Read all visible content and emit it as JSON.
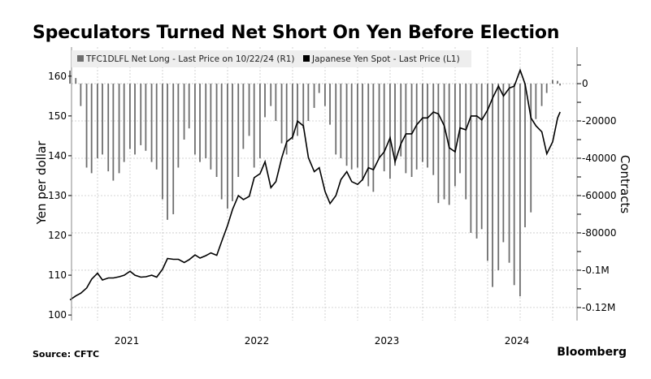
{
  "title": "Speculators Turned Net Short On Yen Before Election",
  "source": "Source: CFTC",
  "brand": "Bloomberg",
  "colors": {
    "bars": "#6e6e6e",
    "line": "#000000",
    "legend_bg": "#eeeeee",
    "grid": "#c8c8c8"
  },
  "chart_data": {
    "type": "bar+line",
    "legend_placement": "top",
    "grid": true,
    "x_ticks": [
      "2021",
      "2022",
      "2023",
      "2024"
    ],
    "left_axis": {
      "label": "Yen per dollar",
      "ticks": [
        100,
        110,
        120,
        130,
        140,
        150,
        160
      ],
      "range": [
        98.6,
        167.3
      ]
    },
    "right_axis": {
      "label": "Contracts",
      "ticks": [
        0,
        -20000,
        -40000,
        -60000,
        -80000,
        -100000,
        -120000
      ],
      "tick_labels": [
        "0",
        "-20000",
        "-40000",
        "-60000",
        "-80000",
        "-0.1M",
        "-0.12M"
      ],
      "range": [
        -127000,
        19600
      ]
    },
    "x": [
      "2021-01-15",
      "2021-02-01",
      "2021-02-15",
      "2021-03-01",
      "2021-03-15",
      "2021-04-01",
      "2021-04-15",
      "2021-05-01",
      "2021-05-15",
      "2021-06-01",
      "2021-06-15",
      "2021-07-01",
      "2021-07-15",
      "2021-08-01",
      "2021-08-15",
      "2021-09-01",
      "2021-09-15",
      "2021-10-01",
      "2021-10-15",
      "2021-11-01",
      "2021-11-15",
      "2021-12-01",
      "2021-12-15",
      "2022-01-01",
      "2022-01-15",
      "2022-02-01",
      "2022-02-15",
      "2022-03-01",
      "2022-03-15",
      "2022-04-01",
      "2022-04-15",
      "2022-05-01",
      "2022-05-15",
      "2022-06-01",
      "2022-06-15",
      "2022-07-01",
      "2022-07-15",
      "2022-08-01",
      "2022-08-15",
      "2022-09-01",
      "2022-09-15",
      "2022-10-01",
      "2022-10-15",
      "2022-11-01",
      "2022-11-15",
      "2022-12-01",
      "2022-12-15",
      "2023-01-01",
      "2023-01-15",
      "2023-02-01",
      "2023-02-15",
      "2023-03-01",
      "2023-03-15",
      "2023-04-01",
      "2023-04-15",
      "2023-05-01",
      "2023-05-15",
      "2023-06-01",
      "2023-06-15",
      "2023-07-01",
      "2023-07-15",
      "2023-08-01",
      "2023-08-15",
      "2023-09-01",
      "2023-09-15",
      "2023-10-01",
      "2023-10-15",
      "2023-11-01",
      "2023-11-15",
      "2023-12-01",
      "2023-12-15",
      "2024-01-01",
      "2024-01-15",
      "2024-02-01",
      "2024-02-15",
      "2024-03-01",
      "2024-03-15",
      "2024-04-01",
      "2024-04-15",
      "2024-05-01",
      "2024-05-15",
      "2024-06-01",
      "2024-06-15",
      "2024-07-01",
      "2024-07-15",
      "2024-08-01",
      "2024-08-15",
      "2024-09-01",
      "2024-09-15",
      "2024-10-01",
      "2024-10-15",
      "2024-10-22"
    ],
    "series": [
      {
        "name": "TFC1DLFL Net Long - Last Price on 10/22/24 (R1)",
        "type": "bar",
        "axis": "right",
        "values": [
          7000,
          3000,
          -12000,
          -45000,
          -48000,
          -40000,
          -38000,
          -47000,
          -52000,
          -48000,
          -42000,
          -35000,
          -38000,
          -33000,
          -36000,
          -42000,
          -46000,
          -62000,
          -73000,
          -70000,
          -45000,
          -30000,
          -24000,
          -38000,
          -42000,
          -40000,
          -46000,
          -50000,
          -62000,
          -67000,
          -63000,
          -50000,
          -35000,
          -28000,
          -45000,
          -40000,
          -18000,
          -12000,
          -20000,
          -32000,
          -38000,
          -30000,
          -28000,
          -24000,
          -20000,
          -13000,
          -5000,
          -12000,
          -22000,
          -38000,
          -40000,
          -44000,
          -46000,
          -45000,
          -52000,
          -55000,
          -58000,
          -40000,
          -47000,
          -51000,
          -44000,
          -39000,
          -48000,
          -50000,
          -46000,
          -42000,
          -45000,
          -49000,
          -64000,
          -62000,
          -65000,
          -55000,
          -48000,
          -62000,
          -80000,
          -83000,
          -78000,
          -95000,
          -109000,
          -100000,
          -85000,
          -96000,
          -108000,
          -114000,
          -77000,
          -69000,
          -19000,
          -12000,
          -5000,
          2000,
          1500,
          -1000
        ]
      },
      {
        "name": "Japanese Yen Spot - Last Price (L1)",
        "type": "line",
        "axis": "left",
        "values": [
          103.8,
          104.8,
          105.5,
          106.8,
          109.0,
          110.5,
          108.8,
          109.3,
          109.3,
          109.6,
          110.0,
          111.0,
          110.0,
          109.5,
          109.6,
          110.0,
          109.5,
          111.5,
          114.2,
          114.0,
          114.0,
          113.2,
          113.9,
          115.1,
          114.3,
          114.9,
          115.6,
          115.0,
          118.5,
          122.5,
          126.5,
          130.0,
          129.0,
          129.8,
          134.5,
          135.5,
          138.5,
          132.0,
          133.5,
          139.5,
          143.5,
          144.7,
          148.7,
          147.5,
          139.5,
          136.0,
          137.0,
          131.0,
          128.0,
          130.0,
          134.0,
          136.0,
          133.5,
          132.8,
          134.0,
          137.0,
          136.5,
          139.5,
          141.0,
          144.5,
          138.5,
          143.0,
          145.5,
          145.5,
          147.8,
          149.5,
          149.5,
          151.0,
          150.5,
          147.5,
          142.0,
          141.0,
          147.0,
          146.5,
          150.0,
          150.0,
          149.0,
          151.5,
          154.5,
          157.5,
          155.0,
          157.0,
          157.5,
          161.5,
          158.0,
          149.5,
          147.5,
          146.0,
          140.5,
          143.5,
          149.5,
          151.0
        ]
      }
    ]
  }
}
